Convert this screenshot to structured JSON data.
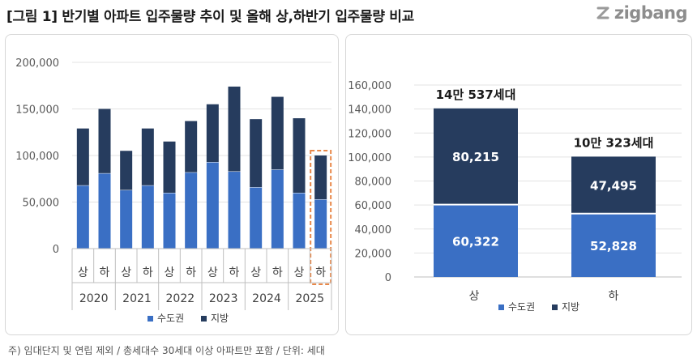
{
  "header": {
    "title": "[그림 1] 반기별 아파트 입주물량 추이 및 올해 상,하반기 입주물량 비교",
    "brand": "zigbang"
  },
  "footnote": "주) 임대단지 및 연립 제외 / 총세대수 30세대 이상 아파트만 포함 / 단위: 세대",
  "colors": {
    "capital": "#3a6fc4",
    "local": "#263c5e",
    "highlight": "#e8884a",
    "grid": "#e3e3e3",
    "axis": "#bfbfbf"
  },
  "chart_data": [
    {
      "type": "bar",
      "stacked": true,
      "years": [
        "2020",
        "2021",
        "2022",
        "2023",
        "2024",
        "2025"
      ],
      "halves": [
        "상",
        "하",
        "상",
        "하",
        "상",
        "하",
        "상",
        "하",
        "상",
        "하",
        "상",
        "하"
      ],
      "y_ticks": [
        "0",
        "50,000",
        "100,000",
        "150,000",
        "200,000"
      ],
      "ylim": [
        0,
        200000
      ],
      "series": [
        {
          "name": "수도권",
          "values": [
            68000,
            81000,
            63000,
            68000,
            60000,
            82000,
            93000,
            83000,
            66000,
            85000,
            60000,
            53000
          ]
        },
        {
          "name": "지방",
          "values": [
            61000,
            69000,
            42000,
            61000,
            55000,
            55000,
            62000,
            91000,
            73000,
            78000,
            80000,
            47000
          ]
        }
      ],
      "highlight_index": 11,
      "legend": "bottom"
    },
    {
      "type": "bar",
      "stacked": true,
      "categories": [
        "상",
        "하"
      ],
      "y_ticks": [
        "0",
        "20,000",
        "40,000",
        "60,000",
        "80,000",
        "100,000",
        "120,000",
        "140,000",
        "160,000"
      ],
      "ylim": [
        0,
        160000
      ],
      "series": [
        {
          "name": "수도권",
          "values": [
            60322,
            52828
          ],
          "labels": [
            "60,322",
            "52,828"
          ]
        },
        {
          "name": "지방",
          "values": [
            80215,
            47495
          ],
          "labels": [
            "80,215",
            "47,495"
          ]
        }
      ],
      "totals": [
        "14만 537세대",
        "10만 323세대"
      ],
      "legend": "bottom"
    }
  ]
}
